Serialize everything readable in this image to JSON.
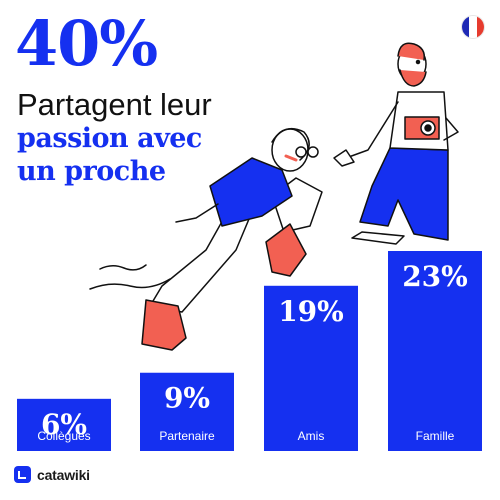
{
  "header": {
    "headline": "40%",
    "subtitle_line1": "Partagent leur",
    "subtitle_line2": "passion avec",
    "subtitle_line3": "un proche"
  },
  "flag": {
    "icon": "france-flag-icon",
    "colors": [
      "#1f2ab5",
      "#ffffff",
      "#e63b2e"
    ]
  },
  "brand": {
    "name": "catawiki",
    "icon": "catawiki-logo-icon"
  },
  "colors": {
    "accent": "#1530f0",
    "bar_text": "#ffffff",
    "illustration_red": "#f26052",
    "ink": "#111111"
  },
  "chart_data": {
    "type": "bar",
    "categories": [
      "Collègues",
      "Partenaire",
      "Amis",
      "Famille"
    ],
    "values": [
      6,
      9,
      19,
      23
    ],
    "value_labels": [
      "6%",
      "9%",
      "19%",
      "23%"
    ],
    "title": "",
    "xlabel": "",
    "ylabel": "",
    "ylim": [
      0,
      25
    ],
    "grid": false,
    "legend": "none"
  }
}
